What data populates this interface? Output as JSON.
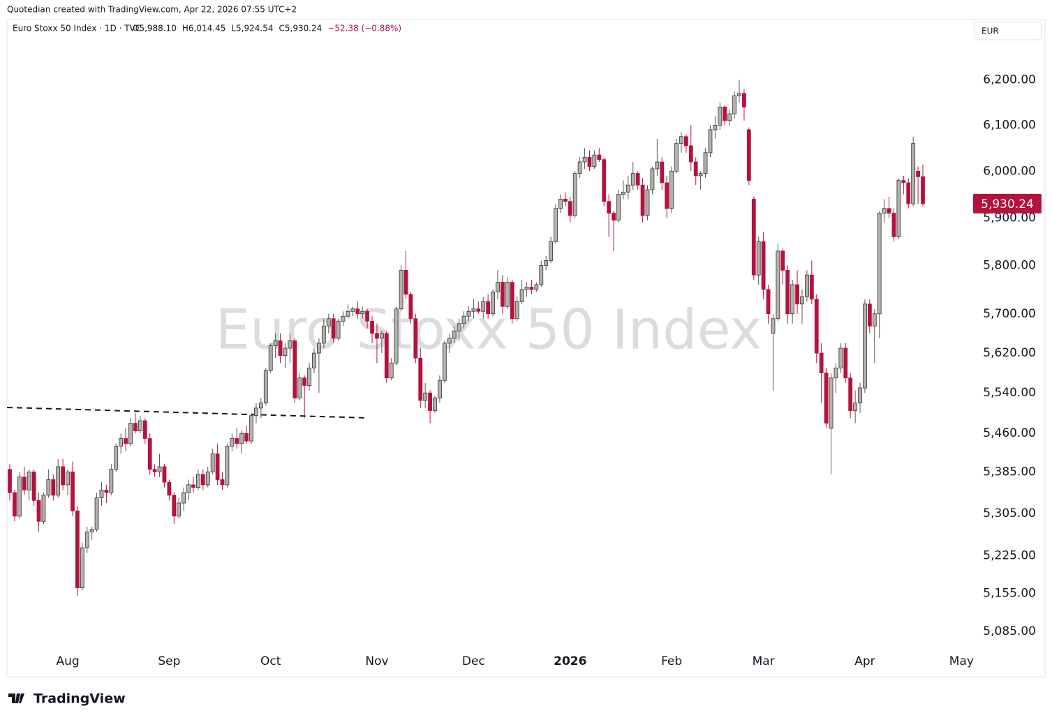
{
  "caption": "Quotedian created with TradingView.com, Apr 22, 2026 07:55 UTC+2",
  "brand": "TradingView",
  "chart_data": {
    "type": "candlestick",
    "title": "Euro Stoxx 50 Index",
    "symbol": "Euro Stoxx 50 Index · 1D · TVC",
    "legend": [
      "O5,988.10",
      "H6,014.45",
      "L5,924.54",
      "C5,930.24",
      "−52.38 (−0.88%)"
    ],
    "currency": "EUR",
    "last_label": "5,930.24",
    "up_color": "#b5b1ab",
    "down_color": "#b5123e",
    "log_scale": true,
    "ylim": [
      5053,
      6333
    ],
    "yticks": [
      {
        "value": 5085,
        "label": "5,085.00"
      },
      {
        "value": 5155,
        "label": "5,155.00"
      },
      {
        "value": 5225,
        "label": "5,225.00"
      },
      {
        "value": 5305,
        "label": "5,305.00"
      },
      {
        "value": 5385,
        "label": "5,385.00"
      },
      {
        "value": 5460,
        "label": "5,460.00"
      },
      {
        "value": 5540,
        "label": "5,540.00"
      },
      {
        "value": 5620,
        "label": "5,620.00"
      },
      {
        "value": 5700,
        "label": "5,700.00"
      },
      {
        "value": 5800,
        "label": "5,800.00"
      },
      {
        "value": 5900,
        "label": "5,900.00"
      },
      {
        "value": 6000,
        "label": "6,000.00"
      },
      {
        "value": 6100,
        "label": "6,100.00"
      },
      {
        "value": 6200,
        "label": "6,200.00"
      }
    ],
    "xticks": [
      {
        "value": 12,
        "label": "Aug"
      },
      {
        "value": 33,
        "label": "Sep"
      },
      {
        "value": 54,
        "label": "Oct"
      },
      {
        "value": 76,
        "label": "Nov"
      },
      {
        "value": 96,
        "label": "Dec"
      },
      {
        "value": 116,
        "label": "2026"
      },
      {
        "value": 137,
        "label": "Feb"
      },
      {
        "value": 156,
        "label": "Mar"
      },
      {
        "value": 177,
        "label": "Apr"
      },
      {
        "value": 197,
        "label": "May"
      }
    ],
    "ohlc": [
      [
        5390,
        5400,
        5330,
        5345
      ],
      [
        5345,
        5350,
        5290,
        5300
      ],
      [
        5300,
        5385,
        5295,
        5375
      ],
      [
        5375,
        5395,
        5340,
        5350
      ],
      [
        5350,
        5390,
        5330,
        5385
      ],
      [
        5385,
        5390,
        5320,
        5330
      ],
      [
        5330,
        5345,
        5270,
        5290
      ],
      [
        5290,
        5345,
        5285,
        5340
      ],
      [
        5340,
        5390,
        5335,
        5370
      ],
      [
        5370,
        5380,
        5330,
        5340
      ],
      [
        5340,
        5410,
        5335,
        5395
      ],
      [
        5395,
        5410,
        5350,
        5360
      ],
      [
        5360,
        5390,
        5340,
        5385
      ],
      [
        5385,
        5405,
        5300,
        5310
      ],
      [
        5310,
        5320,
        5150,
        5165
      ],
      [
        5165,
        5250,
        5160,
        5240
      ],
      [
        5240,
        5280,
        5230,
        5270
      ],
      [
        5270,
        5280,
        5255,
        5275
      ],
      [
        5275,
        5345,
        5270,
        5335
      ],
      [
        5335,
        5365,
        5320,
        5350
      ],
      [
        5350,
        5360,
        5325,
        5345
      ],
      [
        5345,
        5400,
        5340,
        5390
      ],
      [
        5390,
        5440,
        5385,
        5435
      ],
      [
        5435,
        5460,
        5420,
        5450
      ],
      [
        5450,
        5470,
        5425,
        5440
      ],
      [
        5440,
        5490,
        5435,
        5480
      ],
      [
        5480,
        5500,
        5460,
        5465
      ],
      [
        5465,
        5495,
        5460,
        5485
      ],
      [
        5485,
        5490,
        5440,
        5450
      ],
      [
        5450,
        5460,
        5380,
        5390
      ],
      [
        5390,
        5400,
        5375,
        5385
      ],
      [
        5385,
        5420,
        5375,
        5395
      ],
      [
        5395,
        5400,
        5355,
        5365
      ],
      [
        5365,
        5370,
        5330,
        5340
      ],
      [
        5340,
        5345,
        5285,
        5300
      ],
      [
        5300,
        5335,
        5295,
        5325
      ],
      [
        5325,
        5355,
        5310,
        5345
      ],
      [
        5345,
        5370,
        5330,
        5360
      ],
      [
        5360,
        5375,
        5345,
        5355
      ],
      [
        5355,
        5390,
        5350,
        5380
      ],
      [
        5380,
        5390,
        5350,
        5360
      ],
      [
        5360,
        5395,
        5355,
        5385
      ],
      [
        5385,
        5430,
        5380,
        5420
      ],
      [
        5420,
        5440,
        5360,
        5370
      ],
      [
        5370,
        5385,
        5350,
        5360
      ],
      [
        5360,
        5440,
        5355,
        5435
      ],
      [
        5435,
        5460,
        5425,
        5450
      ],
      [
        5450,
        5470,
        5430,
        5440
      ],
      [
        5440,
        5465,
        5420,
        5460
      ],
      [
        5460,
        5475,
        5440,
        5445
      ],
      [
        5445,
        5500,
        5440,
        5495
      ],
      [
        5495,
        5520,
        5480,
        5510
      ],
      [
        5510,
        5530,
        5490,
        5520
      ],
      [
        5520,
        5590,
        5515,
        5585
      ],
      [
        5585,
        5640,
        5580,
        5635
      ],
      [
        5635,
        5660,
        5610,
        5645
      ],
      [
        5645,
        5660,
        5600,
        5615
      ],
      [
        5615,
        5640,
        5590,
        5630
      ],
      [
        5630,
        5660,
        5600,
        5645
      ],
      [
        5645,
        5650,
        5520,
        5530
      ],
      [
        5530,
        5580,
        5525,
        5570
      ],
      [
        5570,
        5575,
        5490,
        5555
      ],
      [
        5555,
        5600,
        5545,
        5590
      ],
      [
        5590,
        5630,
        5580,
        5620
      ],
      [
        5620,
        5650,
        5540,
        5640
      ],
      [
        5640,
        5690,
        5630,
        5675
      ],
      [
        5675,
        5700,
        5660,
        5690
      ],
      [
        5690,
        5700,
        5640,
        5650
      ],
      [
        5650,
        5690,
        5645,
        5685
      ],
      [
        5685,
        5705,
        5675,
        5695
      ],
      [
        5695,
        5720,
        5690,
        5705
      ],
      [
        5705,
        5715,
        5695,
        5710
      ],
      [
        5710,
        5725,
        5690,
        5700
      ],
      [
        5700,
        5715,
        5690,
        5705
      ],
      [
        5705,
        5710,
        5670,
        5685
      ],
      [
        5685,
        5695,
        5640,
        5660
      ],
      [
        5660,
        5680,
        5600,
        5650
      ],
      [
        5650,
        5665,
        5620,
        5660
      ],
      [
        5660,
        5665,
        5560,
        5570
      ],
      [
        5570,
        5610,
        5565,
        5600
      ],
      [
        5600,
        5715,
        5595,
        5710
      ],
      [
        5710,
        5800,
        5705,
        5790
      ],
      [
        5790,
        5830,
        5730,
        5740
      ],
      [
        5740,
        5745,
        5680,
        5690
      ],
      [
        5690,
        5700,
        5600,
        5610
      ],
      [
        5610,
        5630,
        5510,
        5525
      ],
      [
        5525,
        5560,
        5510,
        5540
      ],
      [
        5540,
        5545,
        5480,
        5505
      ],
      [
        5505,
        5535,
        5500,
        5530
      ],
      [
        5530,
        5575,
        5520,
        5565
      ],
      [
        5565,
        5645,
        5560,
        5640
      ],
      [
        5640,
        5660,
        5620,
        5650
      ],
      [
        5650,
        5675,
        5640,
        5665
      ],
      [
        5665,
        5690,
        5645,
        5680
      ],
      [
        5680,
        5705,
        5670,
        5695
      ],
      [
        5695,
        5715,
        5685,
        5705
      ],
      [
        5705,
        5730,
        5690,
        5710
      ],
      [
        5710,
        5725,
        5700,
        5705
      ],
      [
        5705,
        5735,
        5690,
        5725
      ],
      [
        5725,
        5740,
        5690,
        5700
      ],
      [
        5700,
        5750,
        5695,
        5745
      ],
      [
        5745,
        5790,
        5730,
        5765
      ],
      [
        5765,
        5780,
        5700,
        5715
      ],
      [
        5715,
        5775,
        5710,
        5765
      ],
      [
        5765,
        5770,
        5680,
        5690
      ],
      [
        5690,
        5735,
        5685,
        5725
      ],
      [
        5725,
        5770,
        5720,
        5750
      ],
      [
        5750,
        5765,
        5735,
        5755
      ],
      [
        5755,
        5770,
        5740,
        5750
      ],
      [
        5750,
        5765,
        5745,
        5760
      ],
      [
        5760,
        5810,
        5755,
        5800
      ],
      [
        5800,
        5820,
        5790,
        5810
      ],
      [
        5810,
        5860,
        5805,
        5850
      ],
      [
        5850,
        5930,
        5845,
        5920
      ],
      [
        5920,
        5950,
        5910,
        5940
      ],
      [
        5940,
        5955,
        5925,
        5935
      ],
      [
        5935,
        5945,
        5890,
        5905
      ],
      [
        5905,
        6000,
        5900,
        5995
      ],
      [
        5995,
        6030,
        5985,
        6020
      ],
      [
        6020,
        6050,
        6005,
        6030
      ],
      [
        6030,
        6045,
        6000,
        6010
      ],
      [
        6010,
        6045,
        6005,
        6035
      ],
      [
        6035,
        6050,
        6020,
        6025
      ],
      [
        6025,
        6030,
        5925,
        5935
      ],
      [
        5935,
        5950,
        5860,
        5910
      ],
      [
        5910,
        5915,
        5830,
        5895
      ],
      [
        5895,
        5960,
        5890,
        5950
      ],
      [
        5950,
        5980,
        5940,
        5955
      ],
      [
        5955,
        5990,
        5940,
        5970
      ],
      [
        5970,
        6020,
        5960,
        5995
      ],
      [
        5995,
        6000,
        5960,
        5970
      ],
      [
        5970,
        5985,
        5890,
        5905
      ],
      [
        5905,
        5970,
        5895,
        5960
      ],
      [
        5960,
        6010,
        5950,
        6005
      ],
      [
        6005,
        6070,
        5990,
        6020
      ],
      [
        6020,
        6030,
        5960,
        5975
      ],
      [
        5975,
        5990,
        5900,
        5920
      ],
      [
        5920,
        6010,
        5910,
        6000
      ],
      [
        6000,
        6070,
        5995,
        6060
      ],
      [
        6060,
        6085,
        6040,
        6075
      ],
      [
        6075,
        6080,
        6040,
        6055
      ],
      [
        6055,
        6100,
        6000,
        6020
      ],
      [
        6020,
        6030,
        5970,
        5990
      ],
      [
        5990,
        6000,
        5960,
        5995
      ],
      [
        5995,
        6050,
        5985,
        6040
      ],
      [
        6040,
        6100,
        6030,
        6090
      ],
      [
        6090,
        6120,
        6070,
        6100
      ],
      [
        6100,
        6150,
        6090,
        6140
      ],
      [
        6140,
        6145,
        6100,
        6110
      ],
      [
        6110,
        6135,
        6100,
        6125
      ],
      [
        6125,
        6175,
        6115,
        6165
      ],
      [
        6165,
        6200,
        6150,
        6170
      ],
      [
        6170,
        6180,
        6110,
        6140
      ],
      [
        6090,
        6095,
        5970,
        5980
      ],
      [
        5940,
        5945,
        5770,
        5780
      ],
      [
        5780,
        5860,
        5760,
        5850
      ],
      [
        5850,
        5870,
        5730,
        5750
      ],
      [
        5750,
        5760,
        5680,
        5700
      ],
      [
        5660,
        5700,
        5545,
        5690
      ],
      [
        5690,
        5845,
        5685,
        5830
      ],
      [
        5830,
        5835,
        5760,
        5790
      ],
      [
        5790,
        5800,
        5680,
        5700
      ],
      [
        5700,
        5770,
        5680,
        5760
      ],
      [
        5760,
        5790,
        5700,
        5720
      ],
      [
        5720,
        5750,
        5680,
        5735
      ],
      [
        5735,
        5790,
        5725,
        5780
      ],
      [
        5780,
        5810,
        5720,
        5730
      ],
      [
        5730,
        5740,
        5600,
        5620
      ],
      [
        5620,
        5640,
        5520,
        5580
      ],
      [
        5580,
        5590,
        5470,
        5480
      ],
      [
        5470,
        5580,
        5380,
        5570
      ],
      [
        5570,
        5600,
        5540,
        5590
      ],
      [
        5590,
        5640,
        5580,
        5630
      ],
      [
        5630,
        5640,
        5560,
        5570
      ],
      [
        5570,
        5580,
        5490,
        5505
      ],
      [
        5505,
        5545,
        5480,
        5520
      ],
      [
        5520,
        5560,
        5500,
        5550
      ],
      [
        5550,
        5730,
        5540,
        5720
      ],
      [
        5720,
        5730,
        5660,
        5675
      ],
      [
        5675,
        5710,
        5600,
        5700
      ],
      [
        5700,
        5915,
        5650,
        5910
      ],
      [
        5910,
        5940,
        5890,
        5920
      ],
      [
        5920,
        5945,
        5900,
        5910
      ],
      [
        5910,
        5920,
        5850,
        5860
      ],
      [
        5860,
        5985,
        5855,
        5980
      ],
      [
        5980,
        5990,
        5950,
        5975
      ],
      [
        5975,
        5985,
        5920,
        5930
      ],
      [
        5930,
        6075,
        5925,
        6060
      ],
      [
        6000,
        6010,
        5930,
        5988
      ],
      [
        5988.1,
        6014.45,
        5924.54,
        5930.24
      ]
    ]
  }
}
